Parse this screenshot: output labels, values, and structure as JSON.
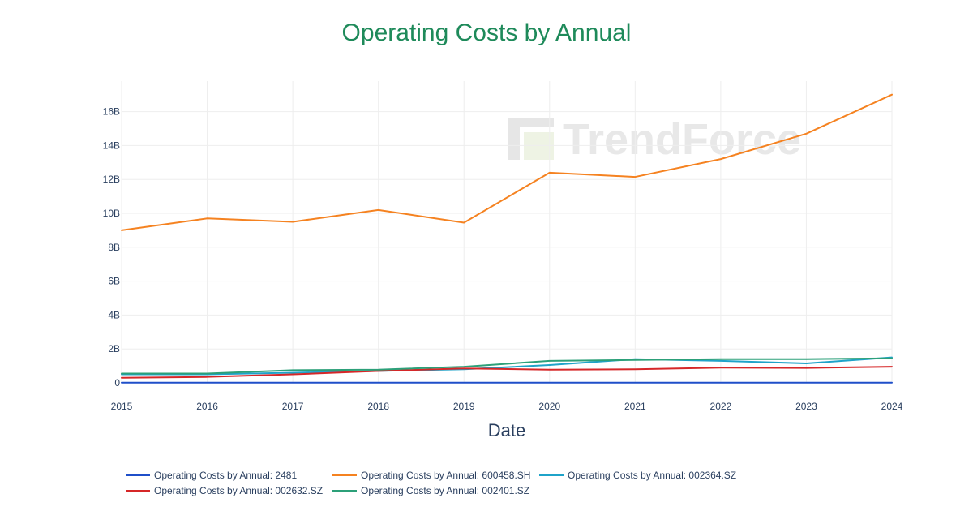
{
  "chart_data": {
    "type": "line",
    "title": "Operating Costs by Annual",
    "xlabel": "Date",
    "ylabel": "",
    "x": [
      "2015",
      "2016",
      "2017",
      "2018",
      "2019",
      "2020",
      "2021",
      "2022",
      "2023",
      "2024"
    ],
    "xlim": [
      2015,
      2024
    ],
    "ylim": [
      0,
      17800000000
    ],
    "yticks": [
      0,
      2000000000,
      4000000000,
      6000000000,
      8000000000,
      10000000000,
      12000000000,
      14000000000,
      16000000000
    ],
    "ytick_labels": [
      "0",
      "2B",
      "4B",
      "6B",
      "8B",
      "10B",
      "12B",
      "14B",
      "16B"
    ],
    "grid": true,
    "legend_position": "bottom",
    "series": [
      {
        "name": "Operating Costs by Annual: 2481",
        "color": "#1f4fc9",
        "values": [
          10000000,
          10000000,
          10000000,
          10000000,
          10000000,
          10000000,
          10000000,
          10000000,
          10000000,
          10000000
        ]
      },
      {
        "name": "Operating Costs by Annual: 600458.SH",
        "color": "#f58220",
        "values": [
          9000000000,
          9700000000,
          9500000000,
          10200000000,
          9450000000,
          12400000000,
          12150000000,
          13200000000,
          14700000000,
          17000000000
        ]
      },
      {
        "name": "Operating Costs by Annual: 002364.SZ",
        "color": "#1fa3c9",
        "values": [
          500000000,
          500000000,
          600000000,
          700000000,
          800000000,
          1050000000,
          1400000000,
          1300000000,
          1150000000,
          1500000000
        ]
      },
      {
        "name": "Operating Costs by Annual: 002632.SZ",
        "color": "#d62728",
        "values": [
          300000000,
          350000000,
          500000000,
          700000000,
          850000000,
          780000000,
          800000000,
          900000000,
          880000000,
          950000000
        ]
      },
      {
        "name": "Operating Costs by Annual: 002401.SZ",
        "color": "#2ca079",
        "values": [
          550000000,
          550000000,
          750000000,
          780000000,
          950000000,
          1300000000,
          1350000000,
          1400000000,
          1400000000,
          1450000000
        ]
      }
    ]
  },
  "style": {
    "title_color": "#1e8a5a",
    "grid_color": "#eeeeee",
    "axis_line_color": "#e5ecf6"
  },
  "watermark": {
    "text": "TrendForce"
  }
}
